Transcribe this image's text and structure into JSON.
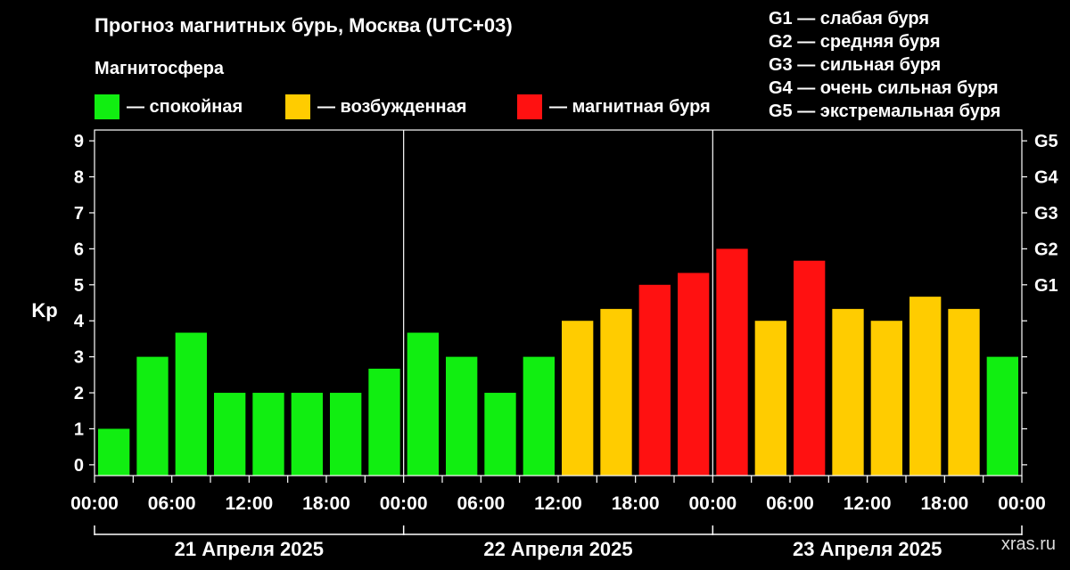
{
  "title": "Прогноз магнитных бурь, Москва (UTC+03)",
  "legend": {
    "heading": "Магнитосфера",
    "items": [
      {
        "label": "— спокойная",
        "color": "#11ee11"
      },
      {
        "label": "— возбужденная",
        "color": "#ffcc00"
      },
      {
        "label": "— магнитная буря",
        "color": "#ff1111"
      }
    ]
  },
  "g_legend": [
    "G1 — слабая буря",
    "G2 — средняя буря",
    "G3 — сильная буря",
    "G4 — очень сильная буря",
    "G5 — экстремальная буря"
  ],
  "watermark": "xras.ru",
  "chart_data": {
    "type": "bar",
    "ylabel": "Kp",
    "ylim": [
      0,
      9
    ],
    "yticks": [
      "0",
      "1",
      "2",
      "3",
      "4",
      "5",
      "6",
      "7",
      "8",
      "9"
    ],
    "right_ticks": [
      {
        "value": 5,
        "label": "G1"
      },
      {
        "value": 6,
        "label": "G2"
      },
      {
        "value": 7,
        "label": "G3"
      },
      {
        "value": 8,
        "label": "G4"
      },
      {
        "value": 9,
        "label": "G5"
      }
    ],
    "x_time_labels": [
      "00:00",
      "06:00",
      "12:00",
      "18:00",
      "00:00",
      "06:00",
      "12:00",
      "18:00",
      "00:00",
      "06:00",
      "12:00",
      "18:00",
      "00:00"
    ],
    "days": [
      "21 Апреля 2025",
      "22 Апреля 2025",
      "23 Апреля 2025"
    ],
    "bar_hours": [
      0,
      3,
      6,
      9,
      12,
      15,
      18,
      21,
      24,
      27,
      30,
      33,
      36,
      39,
      42,
      45,
      48,
      51,
      54,
      57,
      60,
      63,
      66,
      69
    ],
    "values": [
      1,
      3,
      3.67,
      2,
      2,
      2,
      2,
      2.67,
      3.67,
      3,
      2,
      3,
      4,
      4.33,
      5,
      5.33,
      6,
      4,
      5.67,
      4.33,
      4,
      4.67,
      4.33,
      3
    ],
    "levels": [
      "quiet",
      "quiet",
      "quiet",
      "quiet",
      "quiet",
      "quiet",
      "quiet",
      "quiet",
      "quiet",
      "quiet",
      "quiet",
      "quiet",
      "active",
      "active",
      "storm",
      "storm",
      "storm",
      "active",
      "storm",
      "active",
      "active",
      "active",
      "active",
      "quiet"
    ],
    "colors": {
      "quiet": "#11ee11",
      "active": "#ffcc00",
      "storm": "#ff1111"
    },
    "grid": false
  }
}
